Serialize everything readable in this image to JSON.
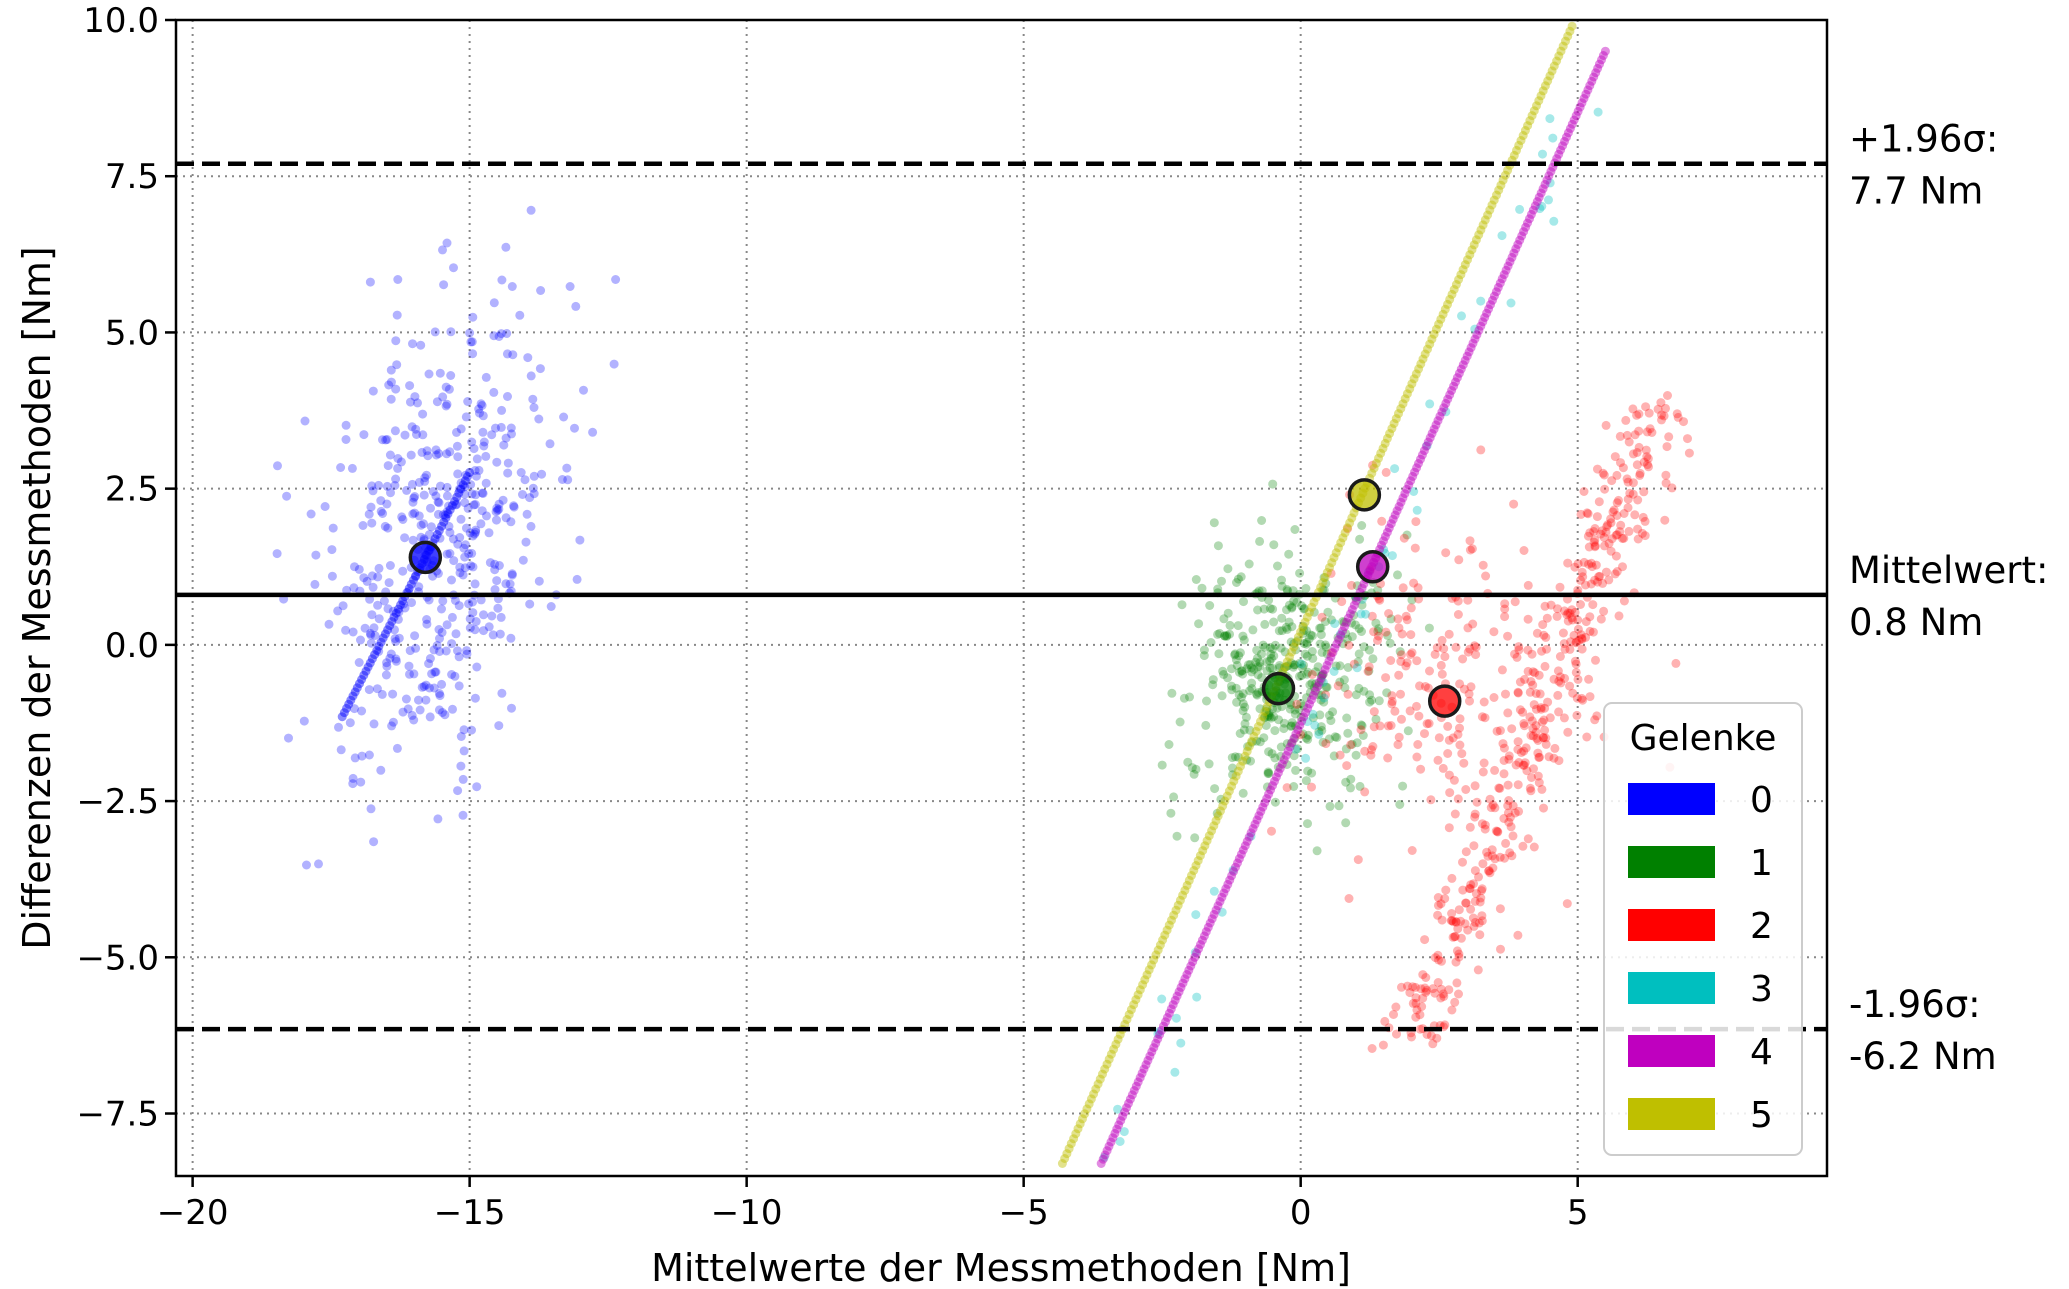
{
  "chart_data": {
    "type": "scatter",
    "title": "",
    "xlabel": "Mittelwerte der Messmethoden [Nm]",
    "ylabel": "Differenzen der Messmethoden [Nm]",
    "xlim": [
      -20.3,
      9.5
    ],
    "ylim": [
      -8.5,
      10.0
    ],
    "x_ticks": [
      -20,
      -15,
      -10,
      -5,
      0,
      5
    ],
    "x_tick_labels": [
      "−20",
      "−15",
      "−10",
      "−5",
      "0",
      "5"
    ],
    "y_ticks": [
      -7.5,
      -5.0,
      -2.5,
      0.0,
      2.5,
      5.0,
      7.5,
      10.0
    ],
    "y_tick_labels": [
      "−7.5",
      "−5.0",
      "−2.5",
      "0.0",
      "2.5",
      "5.0",
      "7.5",
      "10.0"
    ],
    "grid": true,
    "grid_style": "dotted",
    "reference_lines": [
      {
        "kind": "upper-limit",
        "y": 7.7,
        "style": "dashed",
        "label_line1": "+1.96σ:",
        "label_line2": "7.7 Nm"
      },
      {
        "kind": "mean",
        "y": 0.8,
        "style": "solid",
        "label_line1": "Mittelwert:",
        "label_line2": "0.8 Nm"
      },
      {
        "kind": "lower-limit",
        "y": -6.15,
        "style": "dashed",
        "label_line1": "-1.96σ:",
        "label_line2": "-6.2 Nm"
      }
    ],
    "legend": {
      "title": "Gelenke",
      "position": "lower-right",
      "entries": [
        {
          "label": "0",
          "color": "#0000ff"
        },
        {
          "label": "1",
          "color": "#008000"
        },
        {
          "label": "2",
          "color": "#ff0000"
        },
        {
          "label": "3",
          "color": "#00bfbf"
        },
        {
          "label": "4",
          "color": "#bf00bf"
        },
        {
          "label": "5",
          "color": "#bfbf00"
        }
      ]
    },
    "series": [
      {
        "name": "0",
        "color": "#0000ff",
        "mean_point": {
          "x": -15.8,
          "y": 1.4
        },
        "cloud": {
          "cx": -15.6,
          "cy": 1.6,
          "sx": 1.1,
          "sy": 1.9,
          "corr": 0.35,
          "n": 480,
          "line": {
            "x0": -17.3,
            "x1": -15.0,
            "slope": 1.7
          }
        }
      },
      {
        "name": "1",
        "color": "#008000",
        "mean_point": {
          "x": -0.4,
          "y": -0.7
        },
        "cloud": {
          "cx": -0.3,
          "cy": -0.5,
          "sx": 0.9,
          "sy": 1.0,
          "corr": 0.1,
          "n": 420
        }
      },
      {
        "name": "2",
        "color": "#ff0000",
        "mean_point": {
          "x": 2.6,
          "y": -0.9
        },
        "cloud": {
          "cx": 2.6,
          "cy": -0.6,
          "sx": 1.3,
          "sy": 1.3,
          "corr": 0.1,
          "n": 220
        },
        "band": {
          "x0": 2.0,
          "y0": -6.5,
          "x1": 6.5,
          "y1": 3.8,
          "width": 0.35,
          "n": 420
        }
      },
      {
        "name": "3",
        "color": "#00bfbf",
        "mean_point": null,
        "line": {
          "x0": -3.6,
          "y0": -8.3,
          "x1": 5.4,
          "y1": 9.3,
          "n": 60,
          "jitter": 0.25
        }
      },
      {
        "name": "4",
        "color": "#bf00bf",
        "mean_point": {
          "x": 1.3,
          "y": 1.25
        },
        "line": {
          "x0": -3.6,
          "y0": -8.3,
          "x1": 5.5,
          "y1": 9.5,
          "n": 260,
          "jitter": 0.0
        }
      },
      {
        "name": "5",
        "color": "#bfbf00",
        "mean_point": {
          "x": 1.15,
          "y": 2.4
        },
        "line": {
          "x0": -4.3,
          "y0": -8.3,
          "x1": 4.9,
          "y1": 9.9,
          "n": 230,
          "jitter": 0.0
        }
      }
    ]
  }
}
